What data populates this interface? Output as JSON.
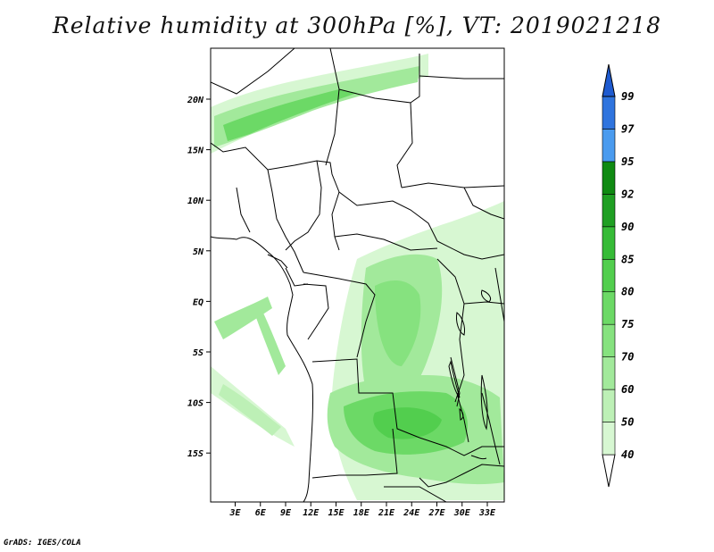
{
  "title": "Relative humidity at 300hPa [%], VT: 2019021218",
  "credit": "GrADS: IGES/COLA",
  "map": {
    "lon_labels": [
      "3E",
      "6E",
      "9E",
      "12E",
      "15E",
      "18E",
      "21E",
      "24E",
      "27E",
      "30E",
      "33E"
    ],
    "lat_labels": [
      "20N",
      "15N",
      "10N",
      "5N",
      "EQ",
      "5S",
      "10S",
      "15S"
    ]
  },
  "colorbar": {
    "levels": [
      "40",
      "50",
      "60",
      "70",
      "75",
      "80",
      "85",
      "90",
      "92",
      "95",
      "97",
      "99"
    ],
    "colors": [
      "#f0fff0",
      "#d7f7d2",
      "#bdf0b6",
      "#a2e99b",
      "#86e27f",
      "#6cd966",
      "#52ce4e",
      "#36bb37",
      "#1f9f23",
      "#0f8a12",
      "#4a9bef",
      "#2f74de",
      "#1f5bd0"
    ]
  }
}
